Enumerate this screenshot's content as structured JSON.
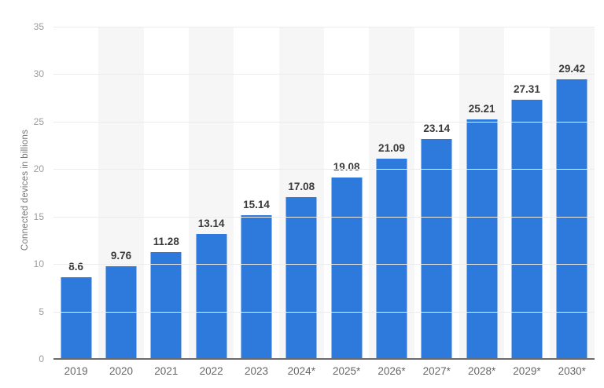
{
  "chart_data": {
    "type": "bar",
    "ylabel": "Connected devices in billions",
    "xlabel": "",
    "categories": [
      "2019",
      "2020",
      "2021",
      "2022",
      "2023",
      "2024*",
      "2025*",
      "2026*",
      "2027*",
      "2028*",
      "2029*",
      "2030*"
    ],
    "values": [
      8.6,
      9.76,
      11.28,
      13.14,
      15.14,
      17.08,
      19.08,
      21.09,
      23.14,
      25.21,
      27.31,
      29.42
    ],
    "data_labels": [
      "8.6",
      "9.76",
      "11.28",
      "13.14",
      "15.14",
      "17.08",
      "19.08",
      "21.09",
      "23.14",
      "25.21",
      "27.31",
      "29.42"
    ],
    "ylim": [
      0,
      35
    ],
    "yticks": [
      0,
      5,
      10,
      15,
      20,
      25,
      30,
      35
    ],
    "grid": "horizontal",
    "legend": "none",
    "bar_color": "#2d79dc",
    "band_color": "#f6f6f6",
    "shaded_columns": [
      1,
      3,
      5,
      7,
      9,
      11
    ]
  }
}
